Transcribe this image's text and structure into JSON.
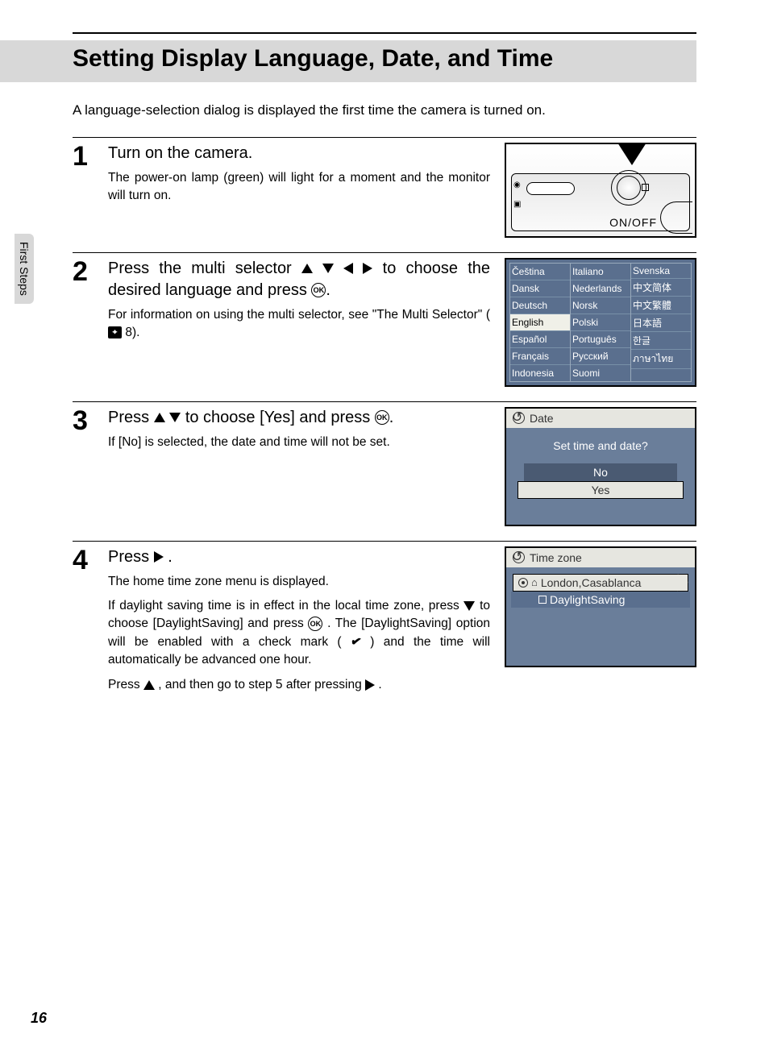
{
  "page": {
    "title": "Setting Display Language, Date, and Time",
    "intro": "A language-selection dialog is displayed the first time the camera is turned on.",
    "sidebar_tab": "First Steps",
    "page_number": "16"
  },
  "steps": [
    {
      "num": "1",
      "title": "Turn on the camera.",
      "desc": "The power-on lamp (green) will light for a moment and the monitor will turn on."
    },
    {
      "num": "2",
      "title_pre": "Press the multi selector ",
      "title_post": " to choose the desired language and press ",
      "desc_pre": "For information on using the multi selector, see \"The Multi Selector\" (",
      "desc_ref": "8",
      "desc_post": ")."
    },
    {
      "num": "3",
      "title_pre": "Press ",
      "title_post": " to choose [Yes] and press ",
      "title_end": ".",
      "desc": "If [No] is selected, the date and time will not be set."
    },
    {
      "num": "4",
      "title_pre": "Press ",
      "title_post": " .",
      "desc1": "The home time zone menu is displayed.",
      "desc2_a": "If daylight saving time is in effect in the local time zone, press ",
      "desc2_b": " to choose [DaylightSaving] and press ",
      "desc2_c": ". The [DaylightSaving] option will be enabled with a check mark (",
      "desc2_d": ") and the time will automatically be advanced one hour.",
      "desc3_a": "Press ",
      "desc3_b": ", and then go to step 5 after pressing ",
      "desc3_c": " ."
    }
  ],
  "camera": {
    "onoff": "ON/OFF"
  },
  "lang_screen": {
    "cols": [
      [
        "Čeština",
        "Dansk",
        "Deutsch",
        "English",
        "Español",
        "Français",
        "Indonesia"
      ],
      [
        "Italiano",
        "Nederlands",
        "Norsk",
        "Polski",
        "Português",
        "Русский",
        "Suomi"
      ],
      [
        "Svenska",
        "中文简体",
        "中文繁體",
        "日本語",
        "한글",
        "ภาษาไทย",
        ""
      ]
    ],
    "selected": "English"
  },
  "date_screen": {
    "head": "Date",
    "prompt": "Set time and date?",
    "no": "No",
    "yes": "Yes"
  },
  "tz_screen": {
    "head": "Time zone",
    "row1": "London,Casablanca",
    "row2": "DaylightSaving"
  },
  "colors": {
    "screen_bg": "#5a6f8e",
    "screen_bg2": "#6a7e9a",
    "title_bg": "#d8d8d8"
  }
}
